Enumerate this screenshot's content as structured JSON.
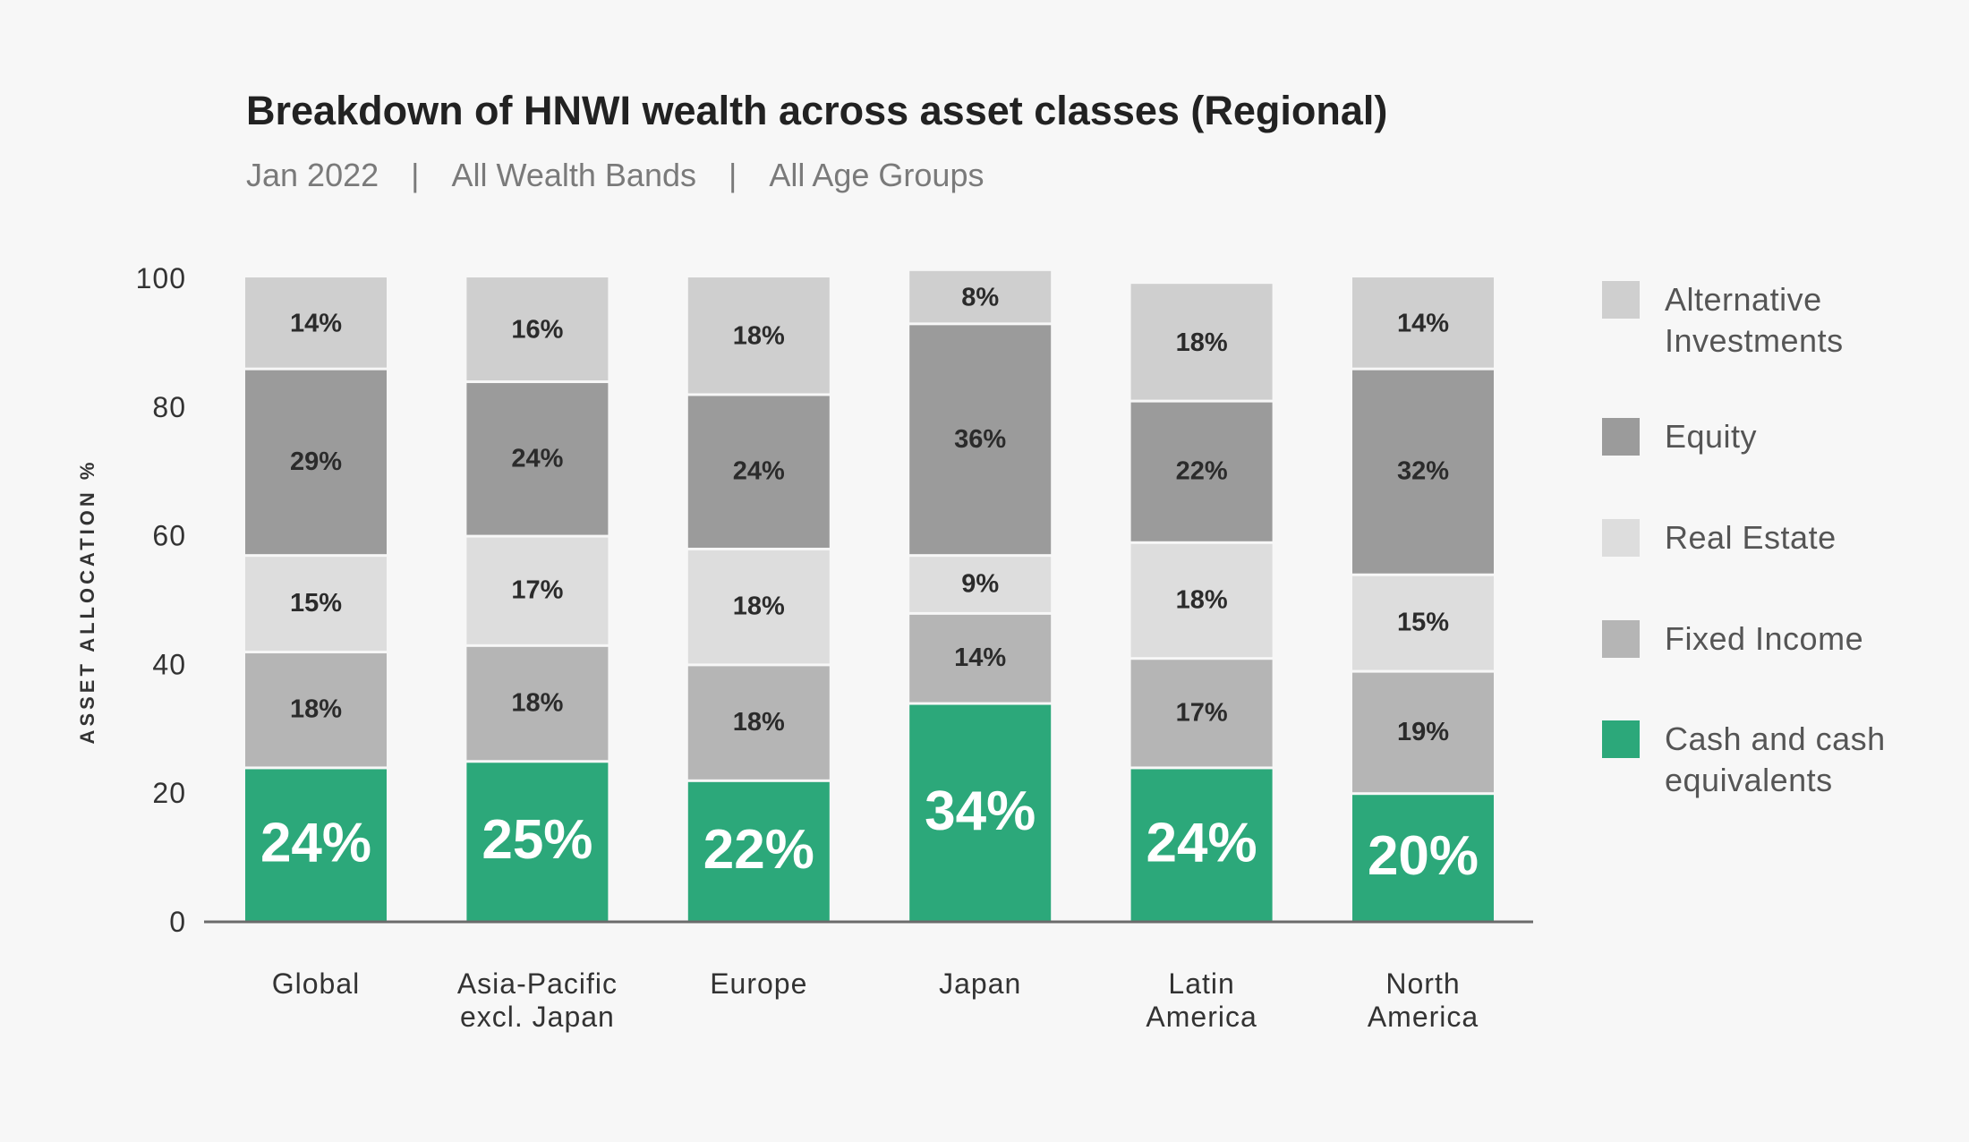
{
  "chart_data": {
    "type": "bar",
    "stacked": true,
    "title": "Breakdown of HNWI wealth across asset classes (Regional)",
    "subtitle": [
      "Jan 2022",
      "All Wealth Bands",
      "All Age Groups"
    ],
    "subtitle_separator": "|",
    "ylabel": "ASSET ALLOCATION %",
    "xlabel": "",
    "ylim": [
      0,
      100
    ],
    "yticks": [
      0,
      20,
      40,
      60,
      80,
      100
    ],
    "legend_position": "right",
    "grid": false,
    "categories": [
      [
        "Global"
      ],
      [
        "Asia-Pacific",
        "excl. Japan"
      ],
      [
        "Europe"
      ],
      [
        "Japan"
      ],
      [
        "Latin",
        "America"
      ],
      [
        "North",
        "America"
      ]
    ],
    "series": [
      {
        "name": "Cash and cash equivalents",
        "legend_lines": [
          "Cash and cash",
          "equivalents"
        ],
        "color": "#2ca87a",
        "values": [
          24,
          25,
          22,
          34,
          24,
          20
        ],
        "labels": [
          "24%",
          "25%",
          "22%",
          "34%",
          "24%",
          "20%"
        ]
      },
      {
        "name": "Fixed Income",
        "legend_lines": [
          "Fixed Income"
        ],
        "color": "#b5b5b5",
        "values": [
          18,
          18,
          18,
          14,
          17,
          19
        ],
        "labels": [
          "18%",
          "18%",
          "18%",
          "14%",
          "17%",
          "19%"
        ]
      },
      {
        "name": "Real Estate",
        "legend_lines": [
          "Real Estate"
        ],
        "color": "#dddddd",
        "values": [
          15,
          17,
          18,
          9,
          18,
          15
        ],
        "labels": [
          "15%",
          "17%",
          "18%",
          "9%",
          "18%",
          "15%"
        ]
      },
      {
        "name": "Equity",
        "legend_lines": [
          "Equity"
        ],
        "color": "#9b9b9b",
        "values": [
          29,
          24,
          24,
          36,
          22,
          32
        ],
        "labels": [
          "29%",
          "24%",
          "24%",
          "36%",
          "22%",
          "32%"
        ]
      },
      {
        "name": "Alternative Investments",
        "legend_lines": [
          "Alternative",
          "Investments"
        ],
        "color": "#cfcfcf",
        "values": [
          14,
          16,
          18,
          8,
          18,
          14
        ],
        "labels": [
          "14%",
          "16%",
          "18%",
          "8%",
          "18%",
          "14%"
        ]
      }
    ],
    "legend_order": [
      "Alternative Investments",
      "Equity",
      "Real Estate",
      "Fixed Income",
      "Cash and cash equivalents"
    ]
  }
}
